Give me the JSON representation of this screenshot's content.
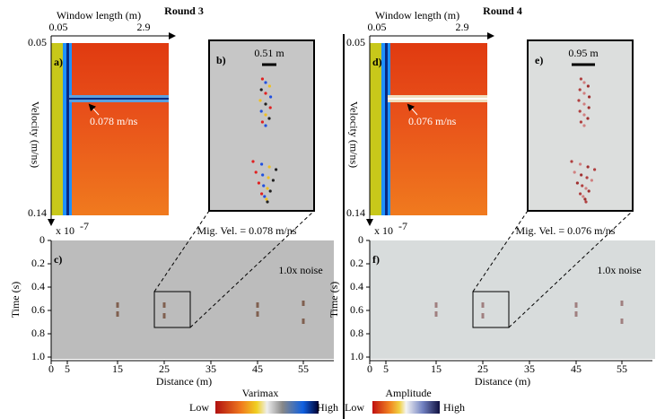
{
  "rounds": [
    {
      "title": "Round 3",
      "varimax": {
        "label": "a)",
        "x_axis_title": "Window length (m)",
        "x_ticks": [
          "0.05",
          "2.9"
        ],
        "y_axis_title": "Velocity (m/ns)",
        "y_ticks": [
          "0.05",
          "0.14"
        ],
        "annotation": "0.078 m/ns"
      },
      "zoom": {
        "label": "b)",
        "scale": "0.51 m"
      },
      "radargram": {
        "label": "c)",
        "exponent_base": "x 10",
        "exponent_power": "-7",
        "y_axis_title": "Time  (s)",
        "y_ticks": [
          "0",
          "0.2",
          "0.4",
          "0.6",
          "0.8",
          "1.0"
        ],
        "x_axis_title": "Distance (m)",
        "x_ticks": [
          "0",
          "5",
          "15",
          "25",
          "35",
          "45",
          "55"
        ],
        "note": "Mig. Vel. = 0.078 m/ns",
        "noise": "1.0x noise"
      }
    },
    {
      "title": "Round 4",
      "varimax": {
        "label": "d)",
        "x_axis_title": "Window length (m)",
        "x_ticks": [
          "0.05",
          "2.9"
        ],
        "y_axis_title": "Velocity (m/ns)",
        "y_ticks": [
          "0.05",
          "0.14"
        ],
        "annotation": "0.076 m/ns"
      },
      "zoom": {
        "label": "e)",
        "scale": "0.95 m"
      },
      "radargram": {
        "label": "f)",
        "exponent_base": "x 10",
        "exponent_power": "-7",
        "y_axis_title": "Time  (s)",
        "y_ticks": [
          "0",
          "0.2",
          "0.4",
          "0.6",
          "0.8",
          "1.0"
        ],
        "x_axis_title": "Distance (m)",
        "x_ticks": [
          "0",
          "5",
          "15",
          "25",
          "35",
          "45",
          "55"
        ],
        "note": "Mig. Vel. = 0.076 m/ns",
        "noise": "1.0x noise"
      }
    }
  ],
  "colorbars": [
    {
      "title": "Varimax",
      "low": "Low",
      "high": "High"
    },
    {
      "title": "Amplitude",
      "low": "Low",
      "high": "High"
    }
  ]
}
